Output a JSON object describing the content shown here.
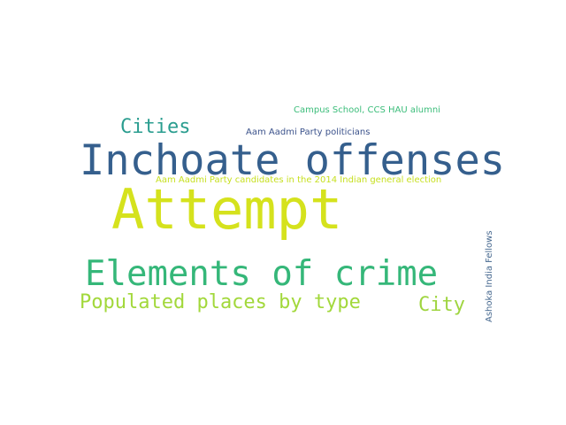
{
  "words": {
    "attempt": {
      "text": "Attempt",
      "color": "#d5e21d"
    },
    "inchoate": {
      "text": "Inchoate offenses",
      "color": "#355f8d"
    },
    "elements": {
      "text": "Elements of crime",
      "color": "#35b779"
    },
    "populated": {
      "text": "Populated places by type",
      "color": "#a2d83b"
    },
    "cities": {
      "text": "Cities",
      "color": "#2a9d8f"
    },
    "city": {
      "text": "City",
      "color": "#9fd540"
    },
    "campus": {
      "text": "Campus School, CCS HAU alumni",
      "color": "#3bbd7a"
    },
    "aap_politicians": {
      "text": "Aam Aadmi Party politicians",
      "color": "#3b528b"
    },
    "aap_candidates": {
      "text": "Aam Aadmi Party candidates in the 2014 Indian general election",
      "color": "#c7e020"
    },
    "ashoka": {
      "text": "Ashoka India Fellows",
      "color": "#46688f"
    }
  }
}
